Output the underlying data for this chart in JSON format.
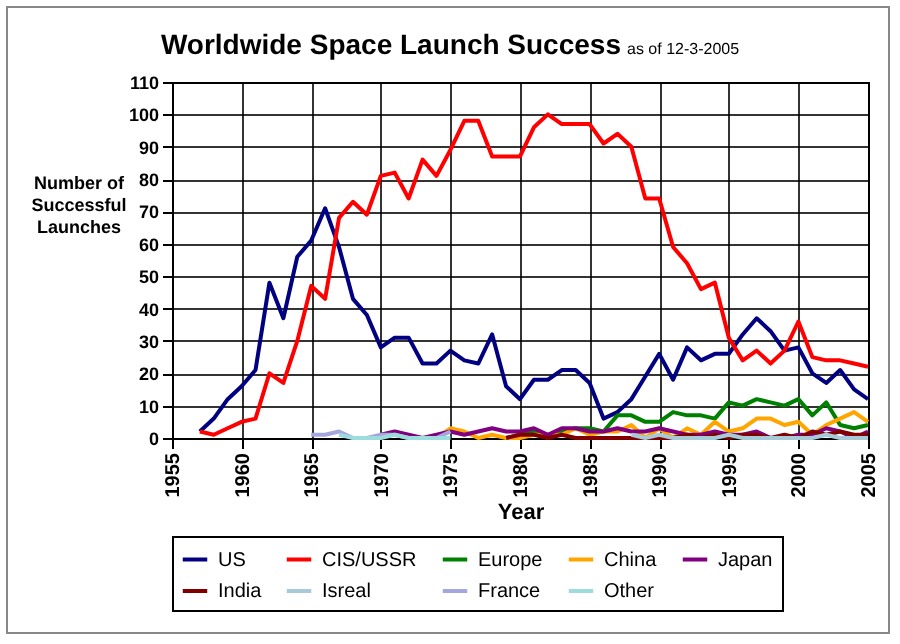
{
  "chart_data": {
    "type": "line",
    "title": "Worldwide Space Launch Success",
    "subtitle": "as of 12-3-2005",
    "xlabel": "Year",
    "ylabel": "Number of Successful Launches",
    "x": [
      1957,
      1958,
      1959,
      1960,
      1961,
      1962,
      1963,
      1964,
      1965,
      1966,
      1967,
      1968,
      1969,
      1970,
      1971,
      1972,
      1973,
      1974,
      1975,
      1976,
      1977,
      1978,
      1979,
      1980,
      1981,
      1982,
      1983,
      1984,
      1985,
      1986,
      1987,
      1988,
      1989,
      1990,
      1991,
      1992,
      1993,
      1994,
      1995,
      1996,
      1997,
      1998,
      1999,
      2000,
      2001,
      2002,
      2003,
      2004,
      2005
    ],
    "series": [
      {
        "name": "US",
        "color": "#000080",
        "values": [
          2,
          6,
          12,
          16,
          21,
          48,
          37,
          56,
          61,
          71,
          59,
          43,
          38,
          28,
          31,
          31,
          23,
          23,
          27,
          24,
          23,
          32,
          16,
          12,
          18,
          18,
          21,
          21,
          17,
          6,
          8,
          12,
          19,
          26,
          18,
          28,
          24,
          26,
          26,
          32,
          37,
          33,
          27,
          28,
          20,
          17,
          21,
          15,
          12
        ]
      },
      {
        "name": "CIS/USSR",
        "color": "#ff0000",
        "values": [
          2,
          1,
          3,
          5,
          6,
          20,
          17,
          30,
          47,
          43,
          68,
          73,
          69,
          81,
          82,
          74,
          86,
          81,
          89,
          98,
          98,
          87,
          87,
          87,
          96,
          100,
          97,
          97,
          97,
          91,
          94,
          90,
          74,
          74,
          59,
          54,
          46,
          48,
          31,
          24,
          27,
          23,
          27,
          36,
          25,
          24,
          24,
          23,
          22
        ]
      },
      {
        "name": "Europe",
        "color": "#008000",
        "x": [
          1979,
          1980,
          1981,
          1982,
          1983,
          1984,
          1985,
          1986,
          1987,
          1988,
          1989,
          1990,
          1991,
          1992,
          1993,
          1994,
          1995,
          1996,
          1997,
          1998,
          1999,
          2000,
          2001,
          2002,
          2003,
          2004,
          2005
        ],
        "values": [
          0,
          1,
          2,
          0,
          2,
          3,
          3,
          2,
          7,
          7,
          5,
          5,
          8,
          7,
          7,
          6,
          11,
          10,
          12,
          11,
          10,
          12,
          7,
          11,
          4,
          3,
          4
        ]
      },
      {
        "name": "China",
        "color": "#ffa500",
        "x": [
          1973,
          1974,
          1975,
          1976,
          1977,
          1978,
          1979,
          1980,
          1981,
          1982,
          1983,
          1984,
          1985,
          1986,
          1987,
          1988,
          1989,
          1990,
          1991,
          1992,
          1993,
          1994,
          1995,
          1996,
          1997,
          1998,
          1999,
          2000,
          2001,
          2002,
          2003,
          2004,
          2005
        ],
        "values": [
          0,
          0,
          3,
          2,
          0,
          1,
          0,
          0,
          1,
          1,
          1,
          3,
          1,
          2,
          2,
          4,
          0,
          3,
          0,
          3,
          1,
          5,
          2,
          3,
          6,
          6,
          4,
          5,
          1,
          4,
          6,
          8,
          5
        ]
      },
      {
        "name": "Japan",
        "color": "#800080",
        "x": [
          1970,
          1971,
          1972,
          1973,
          1974,
          1975,
          1976,
          1977,
          1978,
          1979,
          1980,
          1981,
          1982,
          1983,
          1984,
          1985,
          1986,
          1987,
          1988,
          1989,
          1990,
          1991,
          1992,
          1993,
          1994,
          1995,
          1996,
          1997,
          1998,
          1999,
          2000,
          2001,
          2002,
          2003,
          2004,
          2005
        ],
        "values": [
          1,
          2,
          1,
          0,
          1,
          2,
          1,
          2,
          3,
          2,
          2,
          3,
          1,
          3,
          3,
          2,
          2,
          3,
          2,
          2,
          3,
          2,
          1,
          1,
          2,
          1,
          1,
          2,
          0,
          0,
          1,
          1,
          3,
          2,
          0,
          2
        ]
      },
      {
        "name": "India",
        "color": "#800000",
        "x": [
          1979,
          1980,
          1981,
          1982,
          1983,
          1984,
          1985,
          1986,
          1987,
          1988,
          1989,
          1990,
          1991,
          1992,
          1993,
          1994,
          1995,
          1996,
          1997,
          1998,
          1999,
          2000,
          2001,
          2002,
          2003,
          2004,
          2005
        ],
        "values": [
          0,
          1,
          1,
          0,
          1,
          0,
          0,
          0,
          0,
          0,
          0,
          0,
          0,
          1,
          0,
          1,
          0,
          1,
          1,
          0,
          1,
          0,
          2,
          1,
          2,
          1,
          1
        ]
      },
      {
        "name": "Isreal",
        "color": "#a6cad8",
        "x": [
          1988,
          1989,
          1990,
          1991,
          1992,
          1993,
          1994,
          1995,
          1996,
          1997,
          1998,
          1999,
          2000,
          2001,
          2002,
          2003,
          2004,
          2005
        ],
        "values": [
          1,
          0,
          1,
          0,
          0,
          0,
          0,
          1,
          0,
          0,
          0,
          0,
          0,
          0,
          1,
          0,
          0,
          0
        ]
      },
      {
        "name": "France",
        "color": "#a6a6de",
        "x": [
          1965,
          1966,
          1967,
          1968,
          1969,
          1970,
          1971,
          1972,
          1973,
          1974,
          1975
        ],
        "values": [
          1,
          1,
          2,
          0,
          0,
          1,
          1,
          0,
          0,
          0,
          2
        ]
      },
      {
        "name": "Other",
        "color": "#9ddcdc",
        "x": [
          1967,
          1968,
          1969,
          1970,
          1971,
          1972,
          1973,
          1974,
          1975
        ],
        "values": [
          1,
          0,
          0,
          0,
          1,
          0,
          0,
          0,
          0
        ]
      }
    ],
    "xlim": [
      1955,
      2005
    ],
    "xticks": [
      1955,
      1960,
      1965,
      1970,
      1975,
      1980,
      1985,
      1990,
      1995,
      2000,
      2005
    ],
    "ylim": [
      0,
      110
    ],
    "yticks": [
      0,
      10,
      20,
      30,
      40,
      50,
      60,
      70,
      80,
      90,
      100,
      110
    ],
    "grid": true,
    "legend": "bottom",
    "marker": "none",
    "line_style": "solid"
  }
}
